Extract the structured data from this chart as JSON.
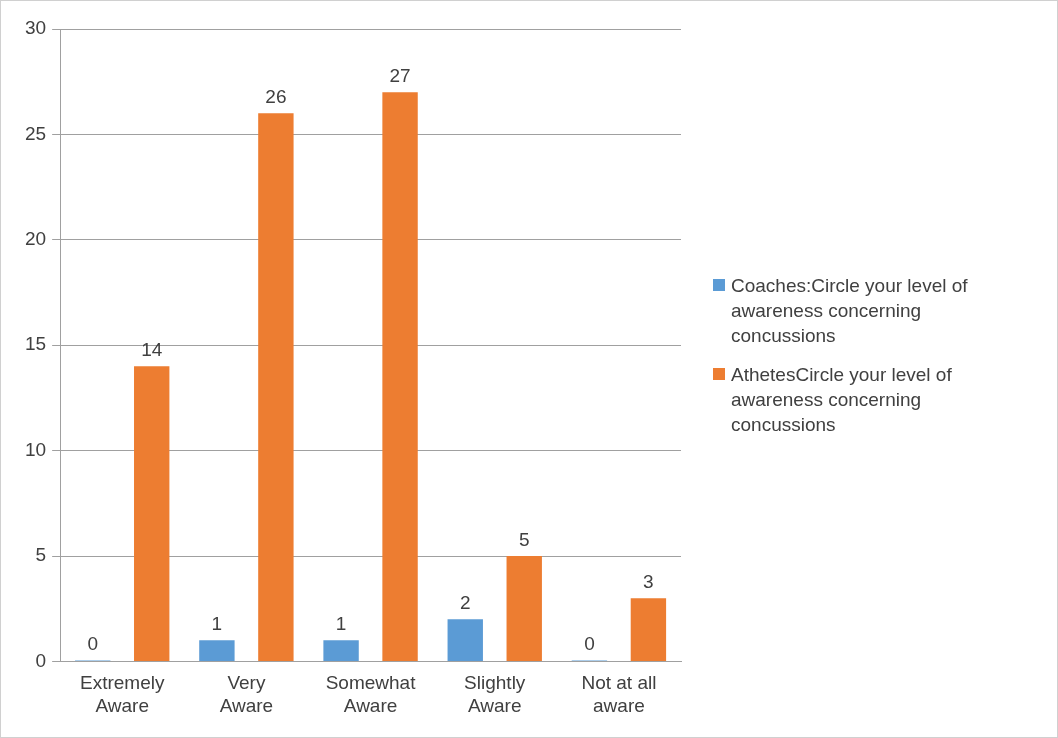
{
  "chart_data": {
    "type": "bar",
    "categories": [
      "Extremely Aware",
      "Very Aware",
      "Somewhat Aware",
      "Slightly Aware",
      "Not at all aware"
    ],
    "series": [
      {
        "name": "Coaches:Circle your level of awareness concerning concussions",
        "color": "#5b9bd5",
        "values": [
          0,
          1,
          1,
          2,
          0
        ]
      },
      {
        "name": "AthetesCircle your level of awareness concerning concussions",
        "color": "#ed7d31",
        "values": [
          14,
          26,
          27,
          5,
          3
        ]
      }
    ],
    "ylim": [
      0,
      30
    ],
    "yticks": [
      0,
      5,
      10,
      15,
      20,
      25,
      30
    ],
    "grid": "y",
    "legend": "right",
    "data_labels": true
  }
}
